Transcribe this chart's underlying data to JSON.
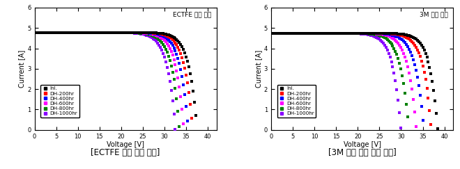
{
  "chart1_title": "ECTFE 전면 소재",
  "chart2_title": "3M 전면 소재",
  "caption1": "[ECTFE 전면 소재 적용]",
  "caption2": "[3M 전면 소재 적용 모듈]",
  "xlabel": "Voltage [V]",
  "ylabel": "Current [A]",
  "xlim": [
    0,
    42
  ],
  "ylim": [
    0,
    6
  ],
  "xticks": [
    0,
    5,
    10,
    15,
    20,
    25,
    30,
    35,
    40
  ],
  "yticks": [
    0,
    1,
    2,
    3,
    4,
    5,
    6
  ],
  "series": [
    {
      "label": "Ini.",
      "color": "#000000"
    },
    {
      "label": "DH-200hr",
      "color": "#ff0000"
    },
    {
      "label": "DH-400hr",
      "color": "#0000ff"
    },
    {
      "label": "DH-600hr",
      "color": "#ff00ff"
    },
    {
      "label": "DH-800hr",
      "color": "#008000"
    },
    {
      "label": "DH-1000hr",
      "color": "#8800ff"
    }
  ],
  "chart1_curves": [
    {
      "isc": 4.78,
      "voc": 37.5,
      "n": 1.05
    },
    {
      "isc": 4.78,
      "voc": 36.5,
      "n": 1.08
    },
    {
      "isc": 4.78,
      "voc": 35.5,
      "n": 1.12
    },
    {
      "isc": 4.78,
      "voc": 34.5,
      "n": 1.16
    },
    {
      "isc": 4.78,
      "voc": 33.5,
      "n": 1.2
    },
    {
      "isc": 4.78,
      "voc": 32.5,
      "n": 1.25
    }
  ],
  "chart2_curves": [
    {
      "isc": 4.75,
      "voc": 38.5,
      "n": 1.05
    },
    {
      "isc": 4.75,
      "voc": 37.0,
      "n": 1.1
    },
    {
      "isc": 4.75,
      "voc": 35.2,
      "n": 1.16
    },
    {
      "isc": 4.75,
      "voc": 33.5,
      "n": 1.22
    },
    {
      "isc": 4.75,
      "voc": 31.8,
      "n": 1.28
    },
    {
      "isc": 4.75,
      "voc": 30.0,
      "n": 1.35
    }
  ]
}
